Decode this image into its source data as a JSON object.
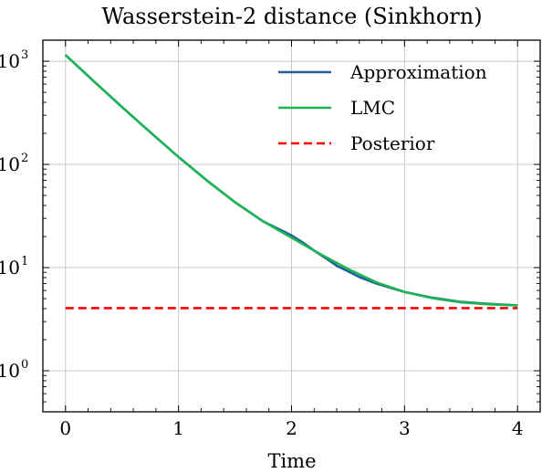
{
  "chart_data": {
    "type": "line",
    "title": "Wasserstein-2 distance (Sinkhorn)",
    "xlabel": "Time",
    "ylabel": "",
    "yscale": "log",
    "xlim": [
      -0.2,
      4.2
    ],
    "ylim": [
      0.4,
      1600
    ],
    "x_ticks": [
      0,
      1,
      2,
      3,
      4
    ],
    "x_tick_labels": [
      "0",
      "1",
      "2",
      "3",
      "4"
    ],
    "y_ticks": [
      1,
      10,
      100,
      1000
    ],
    "y_tick_labels": [
      {
        "base": "10",
        "exp": "0"
      },
      {
        "base": "10",
        "exp": "1"
      },
      {
        "base": "10",
        "exp": "2"
      },
      {
        "base": "10",
        "exp": "3"
      }
    ],
    "grid": true,
    "legend_position": "top-right",
    "series": [
      {
        "name": "Approximation",
        "color": "#1f5f9a",
        "dash": "solid",
        "x": [
          0,
          0.25,
          0.5,
          0.75,
          1.0,
          1.25,
          1.5,
          1.75,
          2.0,
          2.1,
          2.2,
          2.3,
          2.4,
          2.5,
          2.6,
          2.75,
          3.0,
          3.25,
          3.5,
          3.75,
          4.0
        ],
        "y": [
          1150,
          640,
          360,
          205,
          118,
          70,
          43,
          28,
          20.5,
          17.5,
          14.6,
          12.4,
          10.4,
          9.2,
          8.1,
          7.0,
          5.8,
          5.1,
          4.65,
          4.45,
          4.3
        ]
      },
      {
        "name": "LMC",
        "color": "#1cb454",
        "dash": "solid",
        "x": [
          0,
          0.25,
          0.5,
          0.75,
          1.0,
          1.25,
          1.5,
          1.75,
          2.0,
          2.25,
          2.5,
          2.75,
          3.0,
          3.25,
          3.5,
          3.75,
          4.0
        ],
        "y": [
          1150,
          640,
          360,
          205,
          118,
          70,
          43,
          28,
          19.5,
          13.6,
          9.7,
          7.2,
          5.8,
          5.05,
          4.6,
          4.4,
          4.3
        ]
      },
      {
        "name": "Posterior",
        "color": "#ff0000",
        "dash": "dashed",
        "x": [
          0,
          4
        ],
        "y": [
          4.05,
          4.05
        ]
      }
    ]
  }
}
